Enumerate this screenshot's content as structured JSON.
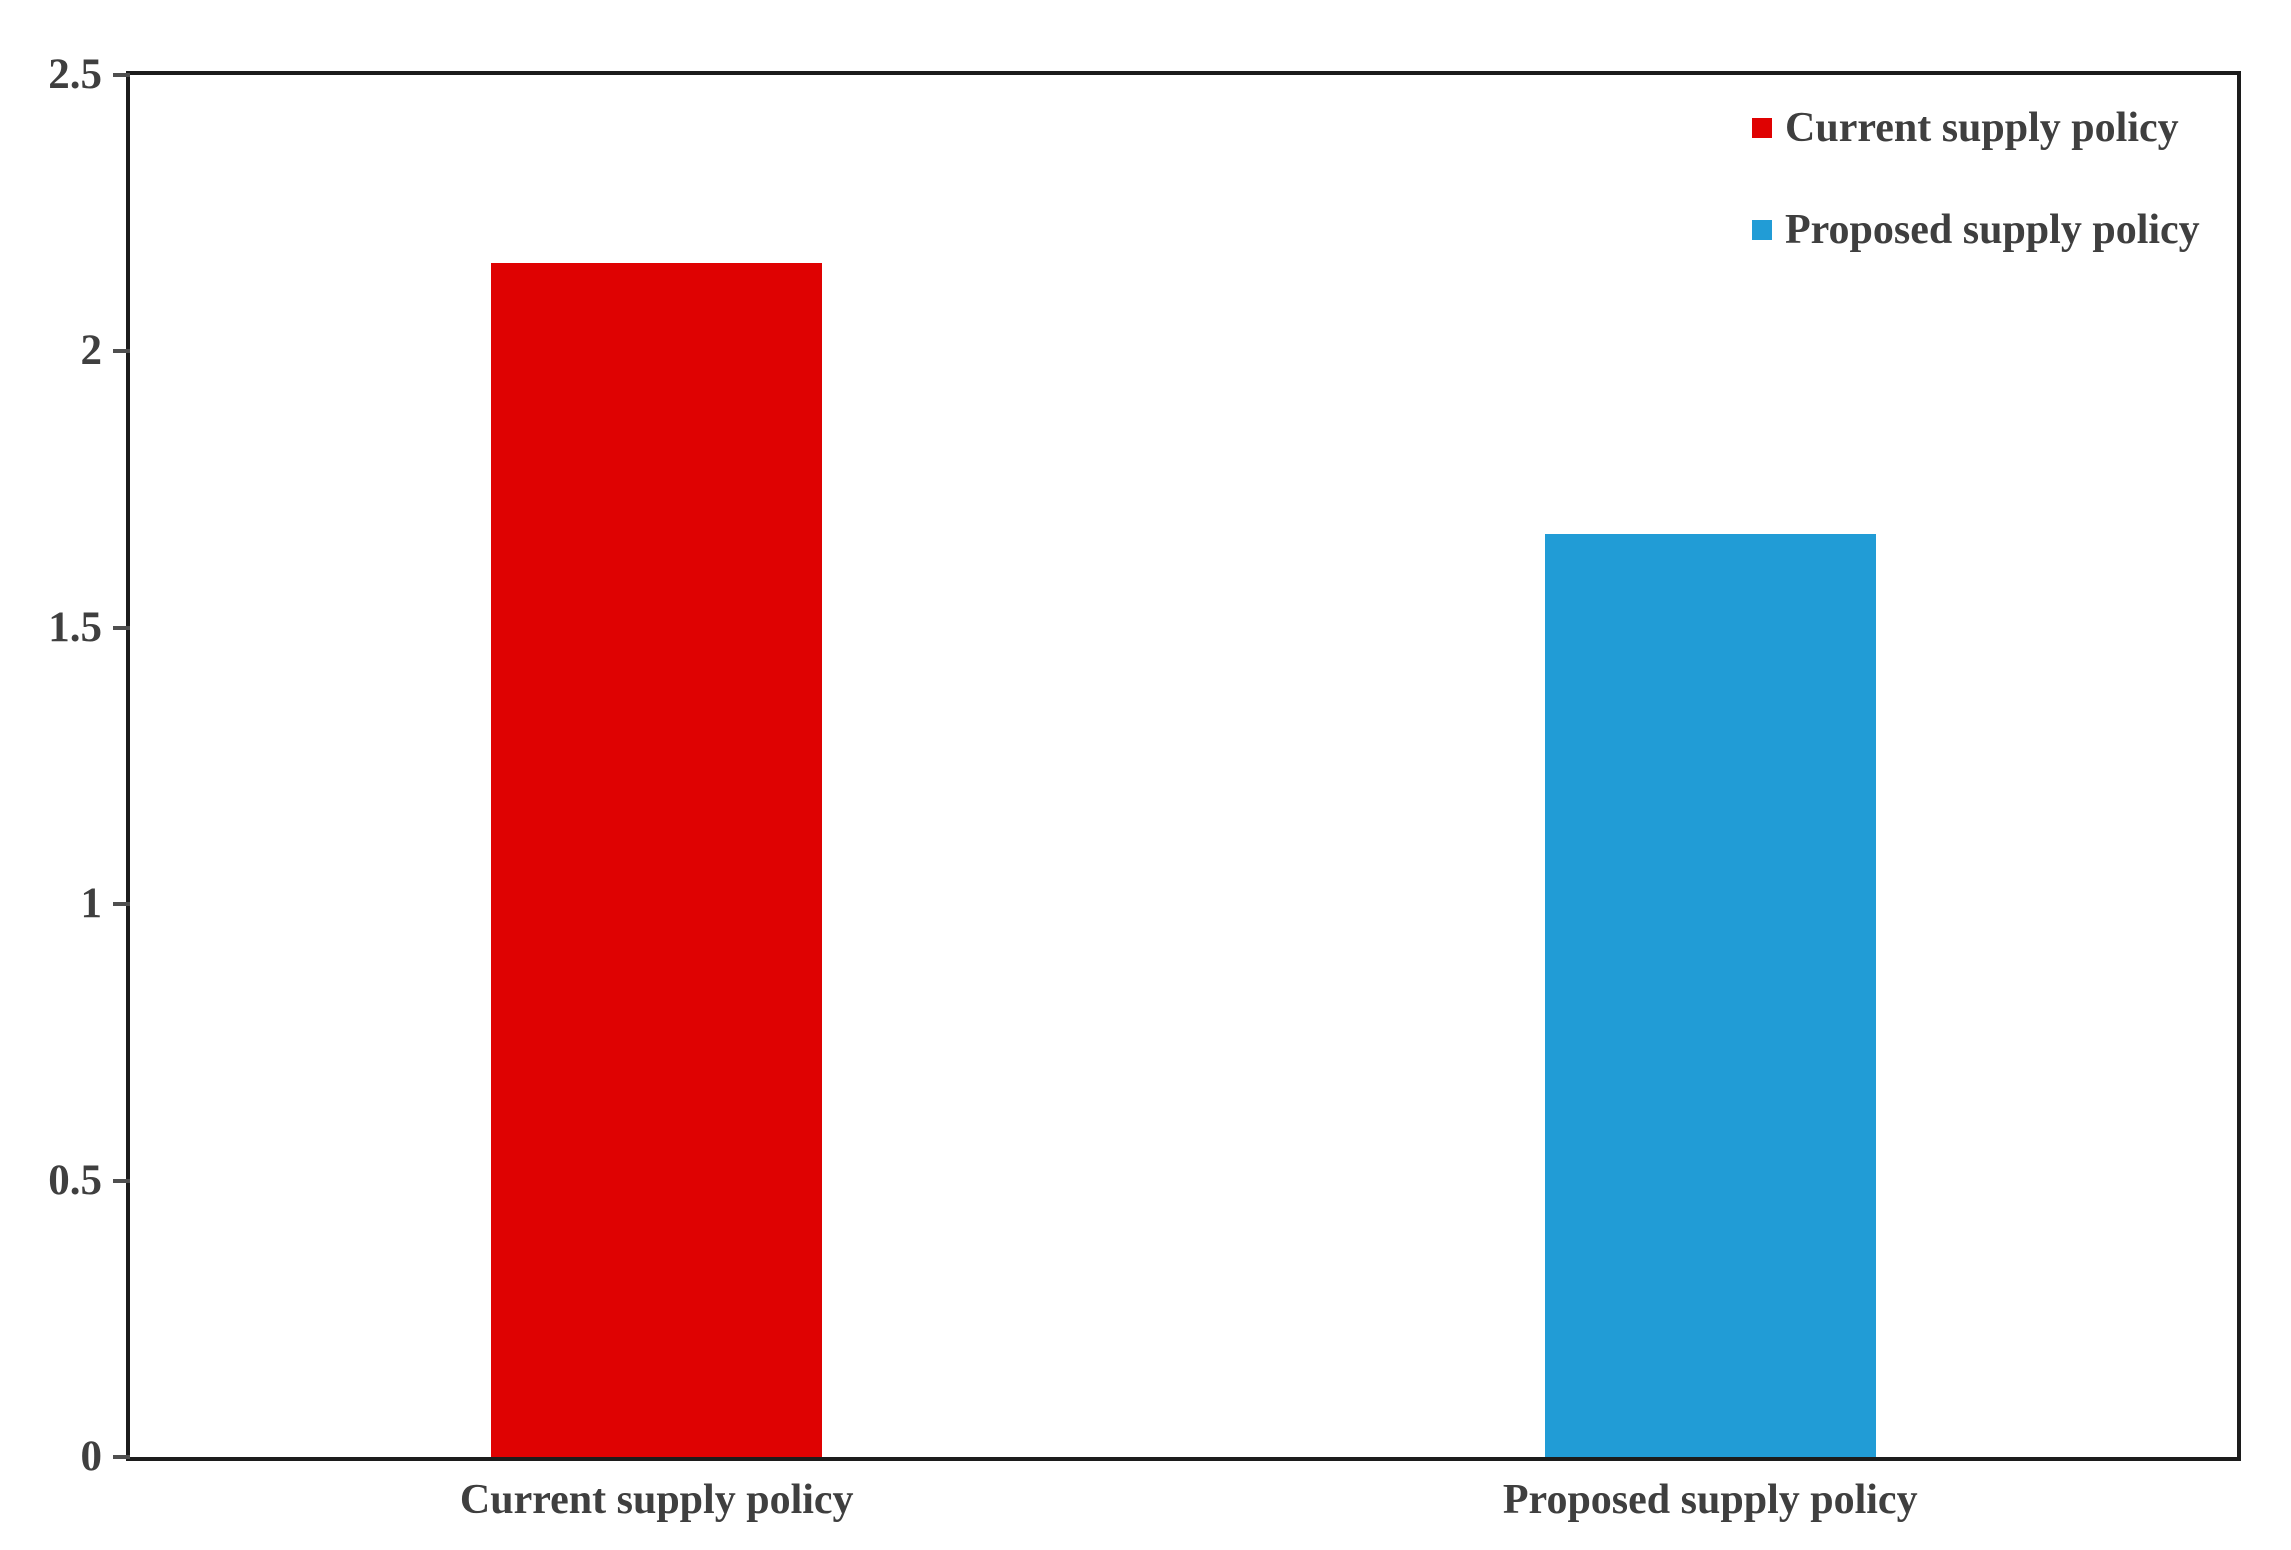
{
  "chart_data": {
    "type": "bar",
    "title": "",
    "xlabel": "",
    "ylabel": "",
    "categories": [
      "Current supply policy",
      "Proposed supply policy"
    ],
    "series": [
      {
        "name": "Current supply policy",
        "value": 2.16,
        "color": "#df0202"
      },
      {
        "name": "Proposed supply policy",
        "value": 1.67,
        "color": "#219cd6"
      }
    ],
    "ylim": [
      0,
      2.5
    ],
    "yticks": [
      0,
      0.5,
      1,
      1.5,
      2,
      2.5
    ],
    "ytick_labels": [
      "0",
      "0.5",
      "1",
      "1.5",
      "2",
      "2.5"
    ],
    "grid": false,
    "legend_position": "top-right-inside",
    "text_color": "#3f3f3f",
    "axis_color": "#1c1c1c"
  }
}
